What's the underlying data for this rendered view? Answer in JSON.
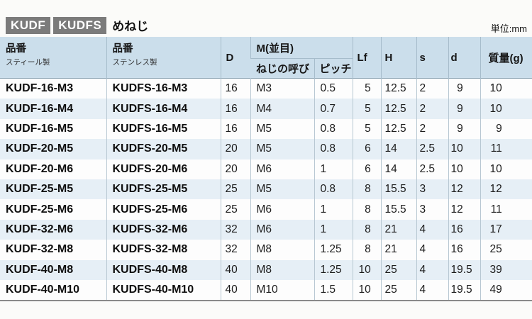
{
  "title": {
    "badge_primary": "KUDF",
    "badge_secondary": "KUDFS",
    "label": "めねじ"
  },
  "unit_note": "単位:mm",
  "table": {
    "headers": {
      "part_steel": {
        "title": "品番",
        "sub": "スティール製"
      },
      "part_stainless": {
        "title": "品番",
        "sub": "ステンレス製"
      },
      "d_outer": "D",
      "thread_group": "M(並目)",
      "thread_call": "ねじの呼び",
      "pitch": "ピッチ",
      "lf": "Lf",
      "h": "H",
      "s": "s",
      "d": "d",
      "mass": "質量(g)"
    },
    "rows": [
      [
        "KUDF-16-M3",
        "KUDFS-16-M3",
        "16",
        "M3",
        "0.5",
        "5",
        "12.5",
        "2",
        "9",
        "10"
      ],
      [
        "KUDF-16-M4",
        "KUDFS-16-M4",
        "16",
        "M4",
        "0.7",
        "5",
        "12.5",
        "2",
        "9",
        "10"
      ],
      [
        "KUDF-16-M5",
        "KUDFS-16-M5",
        "16",
        "M5",
        "0.8",
        "5",
        "12.5",
        "2",
        "9",
        "9"
      ],
      [
        "KUDF-20-M5",
        "KUDFS-20-M5",
        "20",
        "M5",
        "0.8",
        "6",
        "14",
        "2.5",
        "10",
        "11"
      ],
      [
        "KUDF-20-M6",
        "KUDFS-20-M6",
        "20",
        "M6",
        "1",
        "6",
        "14",
        "2.5",
        "10",
        "10"
      ],
      [
        "KUDF-25-M5",
        "KUDFS-25-M5",
        "25",
        "M5",
        "0.8",
        "8",
        "15.5",
        "3",
        "12",
        "12"
      ],
      [
        "KUDF-25-M6",
        "KUDFS-25-M6",
        "25",
        "M6",
        "1",
        "8",
        "15.5",
        "3",
        "12",
        "11"
      ],
      [
        "KUDF-32-M6",
        "KUDFS-32-M6",
        "32",
        "M6",
        "1",
        "8",
        "21",
        "4",
        "16",
        "17"
      ],
      [
        "KUDF-32-M8",
        "KUDFS-32-M8",
        "32",
        "M8",
        "1.25",
        "8",
        "21",
        "4",
        "16",
        "25"
      ],
      [
        "KUDF-40-M8",
        "KUDFS-40-M8",
        "40",
        "M8",
        "1.25",
        "10",
        "25",
        "4",
        "19.5",
        "39"
      ],
      [
        "KUDF-40-M10",
        "KUDFS-40-M10",
        "40",
        "M10",
        "1.5",
        "10",
        "25",
        "4",
        "19.5",
        "49"
      ]
    ]
  },
  "colors": {
    "header_bg": "#cbdeeb",
    "row_alt_bg": "#e6eff6",
    "row_bg": "#fdfdfd",
    "badge_bg": "#7b7b7b",
    "grid_line": "#b7c7d2"
  }
}
